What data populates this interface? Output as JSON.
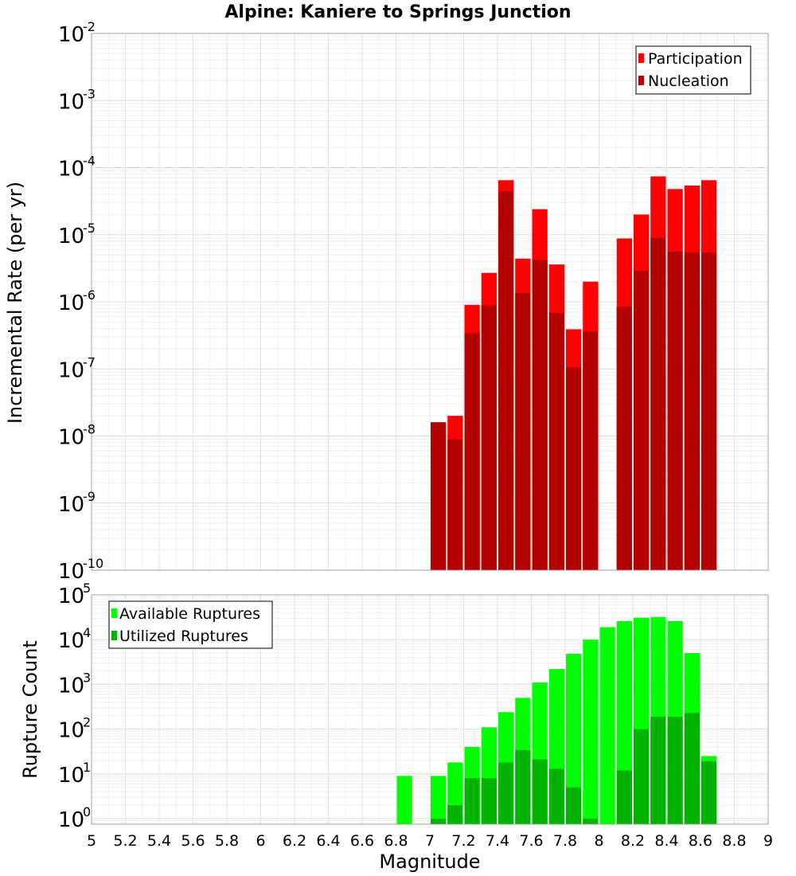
{
  "chart_data": [
    {
      "type": "bar",
      "title": "Alpine: Kaniere to Springs Junction",
      "xlabel": "",
      "ylabel": "Incremental Rate (per yr)",
      "xlim": [
        5,
        9
      ],
      "ylim": [
        1e-10,
        0.01
      ],
      "yscale": "log",
      "bin_width": 0.1,
      "grid": true,
      "legend": "top-right",
      "y_tick_labels": [
        {
          "base": "10",
          "exp": "-10"
        },
        {
          "base": "10",
          "exp": "-9"
        },
        {
          "base": "10",
          "exp": "-8"
        },
        {
          "base": "10",
          "exp": "-7"
        },
        {
          "base": "10",
          "exp": "-6"
        },
        {
          "base": "10",
          "exp": "-5"
        },
        {
          "base": "10",
          "exp": "-4"
        },
        {
          "base": "10",
          "exp": "-3"
        },
        {
          "base": "10",
          "exp": "-2"
        }
      ],
      "x": [
        7.05,
        7.15,
        7.25,
        7.35,
        7.45,
        7.55,
        7.65,
        7.75,
        7.85,
        7.95,
        8.15,
        8.25,
        8.35,
        8.45,
        8.55,
        8.65
      ],
      "series": [
        {
          "name": "Participation",
          "color": "#ff0000",
          "values": [
            1.6e-08,
            2e-08,
            9e-07,
            2.7e-06,
            6.5e-05,
            4.4e-06,
            2.4e-05,
            3.6e-06,
            3.9e-07,
            2e-06,
            8.8e-06,
            2e-05,
            7.4e-05,
            4.8e-05,
            5.4e-05,
            6.5e-05
          ]
        },
        {
          "name": "Nucleation",
          "color": "#b30000",
          "values": [
            1.6e-08,
            9e-09,
            3.4e-07,
            8.8e-07,
            4.4e-05,
            1.35e-06,
            4.2e-06,
            6.8e-07,
            1.05e-07,
            3.6e-07,
            8.5e-07,
            2.9e-06,
            9e-06,
            5.6e-06,
            5.4e-06,
            5.4e-06
          ]
        }
      ]
    },
    {
      "type": "bar",
      "title": "",
      "xlabel": "Magnitude",
      "ylabel": "Rupture Count",
      "xlim": [
        5,
        9
      ],
      "ylim": [
        0.75,
        100000.0
      ],
      "yscale": "log",
      "bin_width": 0.1,
      "grid": true,
      "legend": "top-left",
      "y_tick_labels": [
        {
          "base": "10",
          "exp": "0"
        },
        {
          "base": "10",
          "exp": "1"
        },
        {
          "base": "10",
          "exp": "2"
        },
        {
          "base": "10",
          "exp": "3"
        },
        {
          "base": "10",
          "exp": "4"
        },
        {
          "base": "10",
          "exp": "5"
        }
      ],
      "x_tick_labels": [
        "5",
        "5.2",
        "5.4",
        "5.6",
        "5.8",
        "6",
        "6.2",
        "6.4",
        "6.6",
        "6.8",
        "7",
        "7.2",
        "7.4",
        "7.6",
        "7.8",
        "8",
        "8.2",
        "8.4",
        "8.6",
        "8.8",
        "9"
      ],
      "x": [
        6.85,
        7.05,
        7.15,
        7.25,
        7.35,
        7.45,
        7.55,
        7.65,
        7.75,
        7.85,
        7.95,
        8.05,
        8.15,
        8.25,
        8.35,
        8.45,
        8.55,
        8.65
      ],
      "series": [
        {
          "name": "Available Ruptures",
          "color": "#00ff00",
          "values": [
            9,
            9,
            18,
            40,
            110,
            240,
            500,
            1100,
            2200,
            4800,
            10000,
            19000,
            26000,
            31000,
            32000,
            26000,
            5000,
            25
          ]
        },
        {
          "name": "Utilized Ruptures",
          "color": "#00b300",
          "values": [
            0,
            1,
            2,
            8,
            8,
            18,
            34,
            21,
            13,
            5,
            1,
            0,
            12,
            100,
            190,
            190,
            230,
            19
          ]
        }
      ]
    }
  ]
}
